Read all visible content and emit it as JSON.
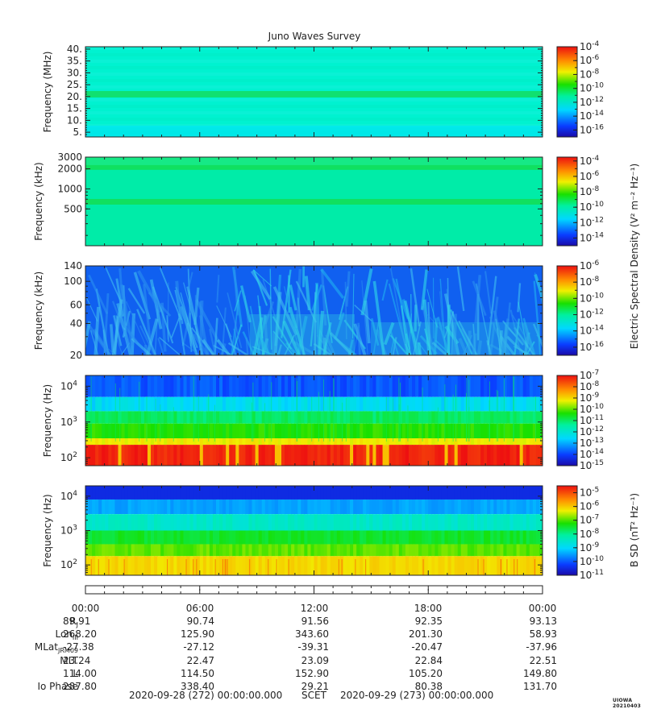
{
  "chart_data": {
    "type": "heatmap",
    "title": "Juno Waves Survey",
    "panels": [
      {
        "id": "hfr-mhz",
        "ylabel": "Frequency (MHz)",
        "yscale": "linear",
        "ylim": [
          3,
          41
        ],
        "yticks": [
          {
            "v": 40,
            "label": "40."
          },
          {
            "v": 35,
            "label": "35."
          },
          {
            "v": 30,
            "label": "30."
          },
          {
            "v": 25,
            "label": "25."
          },
          {
            "v": 20,
            "label": "20."
          },
          {
            "v": 15,
            "label": "15."
          },
          {
            "v": 10,
            "label": "10."
          },
          {
            "v": 5,
            "label": "5."
          }
        ],
        "colorbar_ticks": [
          "-4",
          "-6",
          "-8",
          "-10",
          "-12",
          "-14",
          "-16"
        ],
        "colorbar_range": [
          -17,
          -4
        ],
        "pattern": "uniform-mhz"
      },
      {
        "id": "hfr-khz",
        "ylabel": "Frequency (kHz)",
        "yscale": "log",
        "ylim": [
          140,
          3000
        ],
        "yticks": [
          {
            "v": 3000,
            "label": "3000"
          },
          {
            "v": 2000,
            "label": "2000"
          },
          {
            "v": 1000,
            "label": "1000"
          },
          {
            "v": 500,
            "label": "500"
          }
        ],
        "colorbar_ticks": [
          "-4",
          "-6",
          "-8",
          "-10",
          "-12",
          "-14"
        ],
        "colorbar_range": [
          -15,
          -3.5
        ],
        "colorbar_title": "Electric Spectral Density (V² m⁻² Hz⁻¹)",
        "pattern": "uniform-khz"
      },
      {
        "id": "lfr-khz",
        "ylabel": "Frequency (kHz)",
        "yscale": "log",
        "ylim": [
          20,
          140
        ],
        "yticks": [
          {
            "v": 140,
            "label": "140"
          },
          {
            "v": 100,
            "label": "100"
          },
          {
            "v": 60,
            "label": "60"
          },
          {
            "v": 40,
            "label": "40"
          },
          {
            "v": 20,
            "label": "20"
          }
        ],
        "colorbar_ticks": [
          "-6",
          "-8",
          "-10",
          "-12",
          "-14",
          "-16"
        ],
        "colorbar_range": [
          -17,
          -6
        ],
        "pattern": "streaks"
      },
      {
        "id": "lfr-hz-e",
        "ylabel": "Frequency (Hz)",
        "yscale": "log",
        "ylim": [
          60,
          20000
        ],
        "yticks": [
          {
            "v": 10000,
            "label": "10",
            "exp": "4"
          },
          {
            "v": 1000,
            "label": "10",
            "exp": "3"
          },
          {
            "v": 100,
            "label": "10",
            "exp": "2"
          }
        ],
        "colorbar_ticks": [
          "-7",
          "-8",
          "-9",
          "-10",
          "-11",
          "-12",
          "-13",
          "-14",
          "-15"
        ],
        "colorbar_range": [
          -15,
          -7
        ],
        "pattern": "e-low"
      },
      {
        "id": "lfr-hz-b",
        "ylabel": "Frequency (Hz)",
        "yscale": "log",
        "ylim": [
          50,
          20000
        ],
        "yticks": [
          {
            "v": 10000,
            "label": "10",
            "exp": "4"
          },
          {
            "v": 1000,
            "label": "10",
            "exp": "3"
          },
          {
            "v": 100,
            "label": "10",
            "exp": "2"
          }
        ],
        "colorbar_ticks": [
          "-5",
          "-6",
          "-7",
          "-8",
          "-9",
          "-10",
          "-11"
        ],
        "colorbar_range": [
          -11,
          -4.5
        ],
        "colorbar_title": "B SD (nT² Hz⁻¹)",
        "pattern": "b-low"
      }
    ],
    "colorbar_base": "10",
    "time_axis": {
      "ticks": [
        "00:00",
        "06:00",
        "12:00",
        "18:00",
        "00:00"
      ],
      "major_tick_count": 5,
      "minor_per_major": 6
    }
  },
  "ephemeris": {
    "rows": [
      {
        "label": "R",
        "sub": "J",
        "values": [
          "89.91",
          "90.74",
          "91.56",
          "92.35",
          "93.13"
        ]
      },
      {
        "label": "Lon",
        "sub": "III",
        "values": [
          "268.20",
          "125.90",
          "343.60",
          "201.30",
          "58.93"
        ]
      },
      {
        "label": "MLat",
        "sub": "JRM09",
        "values": [
          "-27.38",
          "-27.12",
          "-39.31",
          "-20.47",
          "-37.96"
        ]
      },
      {
        "label": "MLT",
        "sub": "",
        "values": [
          "23.24",
          "22.47",
          "23.09",
          "22.84",
          "22.51"
        ]
      },
      {
        "label": "L",
        "sub": "",
        "values": [
          "114.00",
          "114.50",
          "152.90",
          "105.20",
          "149.80"
        ]
      },
      {
        "label": "Io Phase",
        "sub": "",
        "values": [
          "287.80",
          "338.40",
          "29.21",
          "80.38",
          "131.70"
        ]
      }
    ]
  },
  "footer": {
    "start": "2020-09-28 (272) 00:00:00.000",
    "scet": "SCET",
    "end": "2020-09-29 (273) 00:00:00.000",
    "stamp": "UIOWA 20210403"
  }
}
